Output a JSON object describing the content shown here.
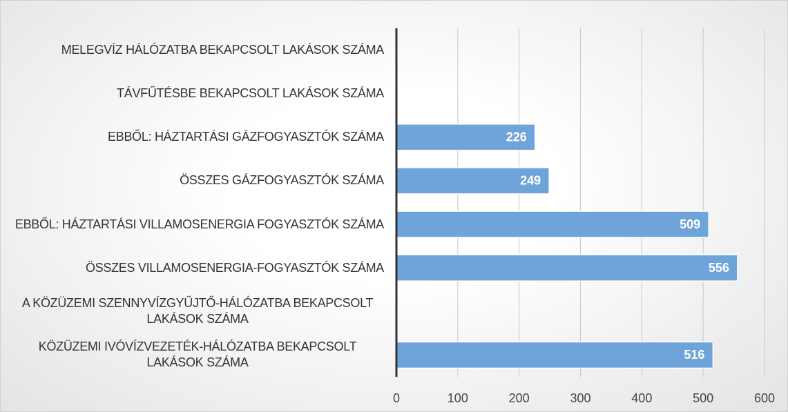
{
  "chart_data": {
    "type": "bar",
    "orientation": "horizontal",
    "categories": [
      "MELEGVÍZ HÁLÓZATBA BEKAPCSOLT LAKÁSOK SZÁMA",
      "TÁVFŰTÉSBE BEKAPCSOLT LAKÁSOK SZÁMA",
      "EBBŐL: HÁZTARTÁSI GÁZFOGYASZTÓK SZÁMA",
      "ÖSSZES GÁZFOGYASZTÓK SZÁMA",
      "EBBŐL: HÁZTARTÁSI VILLAMOSENERGIA FOGYASZTÓK SZÁMA",
      "ÖSSZES VILLAMOSENERGIA-FOGYASZTÓK SZÁMA",
      "A KÖZÜZEMI SZENNYVÍZGYŰJTŐ-HÁLÓZATBA BEKAPCSOLT LAKÁSOK SZÁMA",
      "KÖZÜZEMI IVÓVÍZVEZETÉK-HÁLÓZATBA BEKAPCSOLT LAKÁSOK SZÁMA"
    ],
    "values": [
      null,
      null,
      226,
      249,
      509,
      556,
      null,
      516
    ],
    "color": "#6fa4da",
    "xlim": [
      0,
      600
    ],
    "xticks": [
      0,
      100,
      200,
      300,
      400,
      500,
      600
    ],
    "grid": true
  }
}
